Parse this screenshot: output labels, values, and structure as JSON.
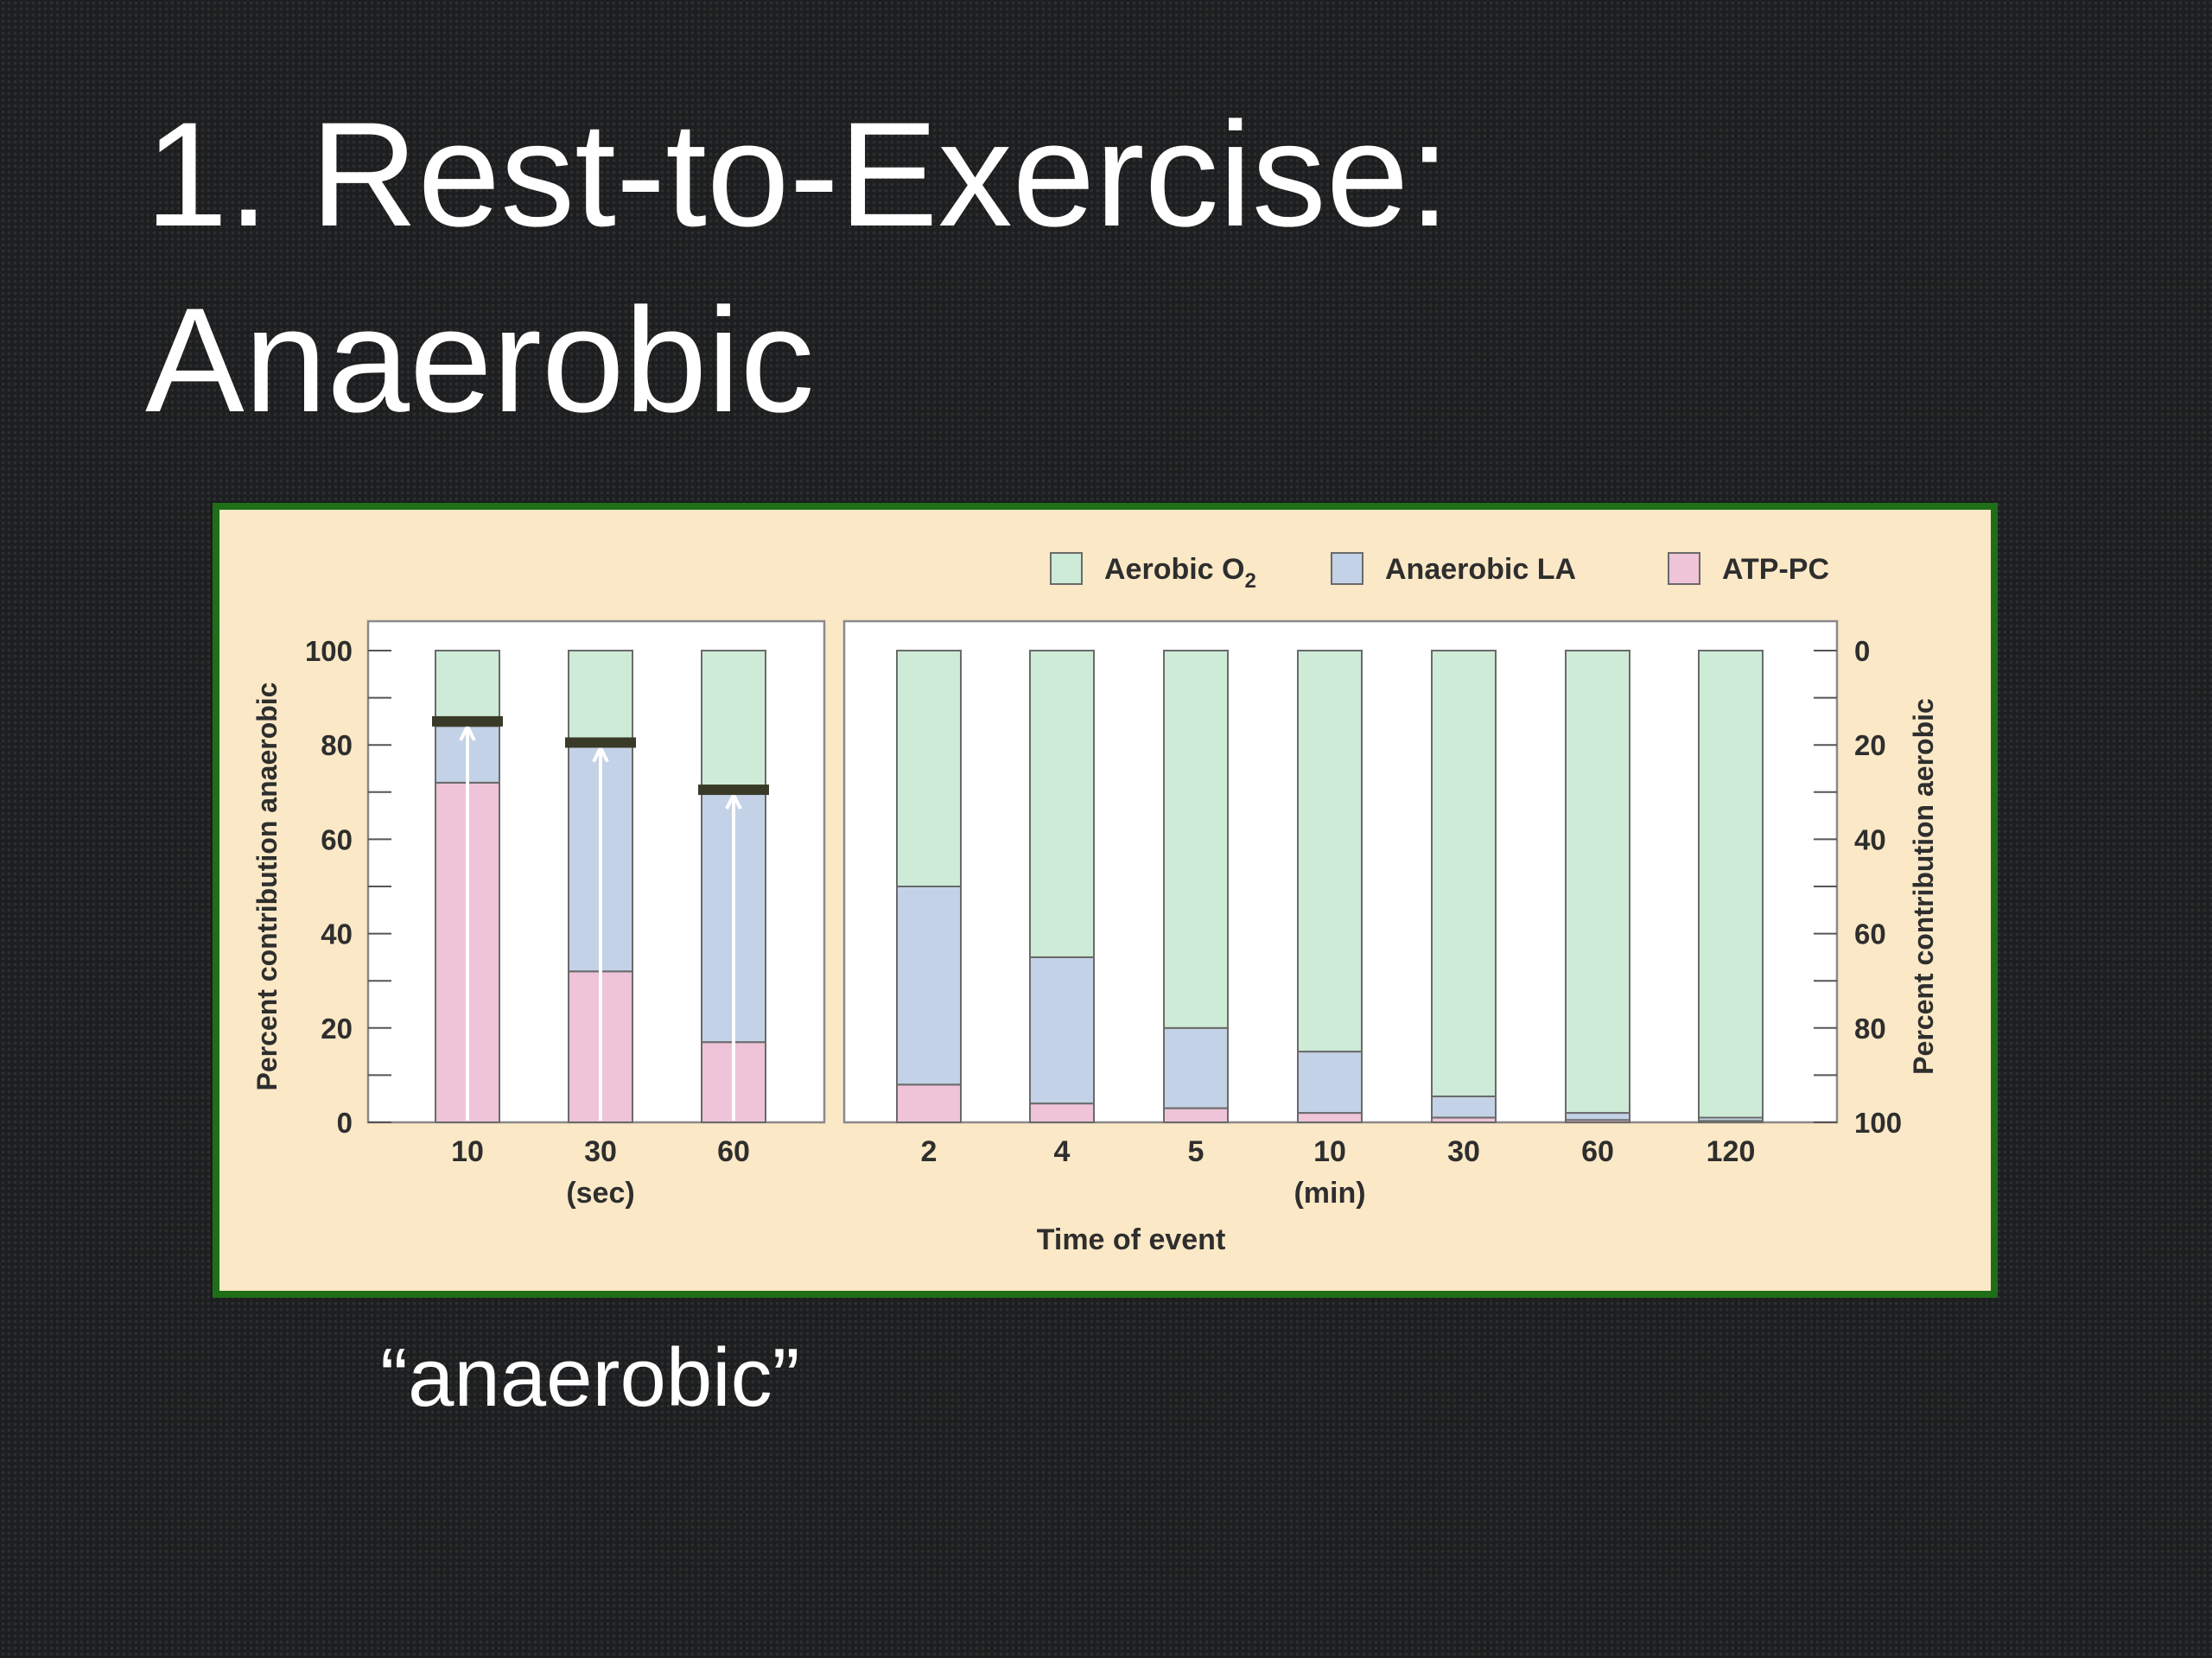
{
  "slide": {
    "title_line1": "1. Rest-to-Exercise:",
    "title_line2": "Anaerobic",
    "caption": "“anaerobic”"
  },
  "colors": {
    "background": "#1d1e1f",
    "frame": "#1f6e18",
    "panel": "#fbe8c6",
    "aerobic": "#cdebd7",
    "anaerobic_la": "#c3d2e6",
    "atp_pc": "#efc3d8",
    "marker": "#3a3a28",
    "arrow": "#ffffff"
  },
  "chart_data": {
    "type": "bar",
    "stacked": true,
    "xlabel": "Time of event",
    "ylabel_left": "Percent contribution anaerobic",
    "ylabel_right": "Percent contribution aerobic",
    "ylim": [
      0,
      100
    ],
    "yticks_left": [
      "100",
      "80",
      "60",
      "40",
      "20",
      "0"
    ],
    "yticks_right": [
      "0",
      "20",
      "40",
      "60",
      "80",
      "100"
    ],
    "legend": {
      "placement": "top-right",
      "items": [
        {
          "label": "Aerobic O",
          "sub": "2",
          "key": "aerobic"
        },
        {
          "label": "Anaerobic LA",
          "sub": "",
          "key": "anaerobic_la"
        },
        {
          "label": "ATP-PC",
          "sub": "",
          "key": "atp_pc"
        }
      ]
    },
    "panels": [
      {
        "unit_label": "(sec)",
        "categories": [
          "10",
          "30",
          "60"
        ],
        "series": [
          {
            "name": "ATP-PC",
            "key": "atp_pc",
            "values": [
              72,
              32,
              17
            ]
          },
          {
            "name": "Anaerobic LA",
            "key": "anaerobic_la",
            "values": [
              12,
              48,
              53
            ]
          },
          {
            "name": "Aerobic O2",
            "key": "aerobic",
            "values": [
              16,
              20,
              30
            ]
          }
        ],
        "markers": [
          85,
          80.5,
          70.5
        ]
      },
      {
        "unit_label": "(min)",
        "categories": [
          "2",
          "4",
          "5",
          "10",
          "30",
          "60",
          "120"
        ],
        "series": [
          {
            "name": "ATP-PC",
            "key": "atp_pc",
            "values": [
              8,
              4,
              3,
              2,
              1,
              0.5,
              0.3
            ]
          },
          {
            "name": "Anaerobic LA",
            "key": "anaerobic_la",
            "values": [
              42,
              31,
              17,
              13,
              4.5,
              1.5,
              0.7
            ]
          },
          {
            "name": "Aerobic O2",
            "key": "aerobic",
            "values": [
              50,
              65,
              80,
              85,
              94.5,
              98,
              99
            ]
          }
        ]
      }
    ]
  }
}
